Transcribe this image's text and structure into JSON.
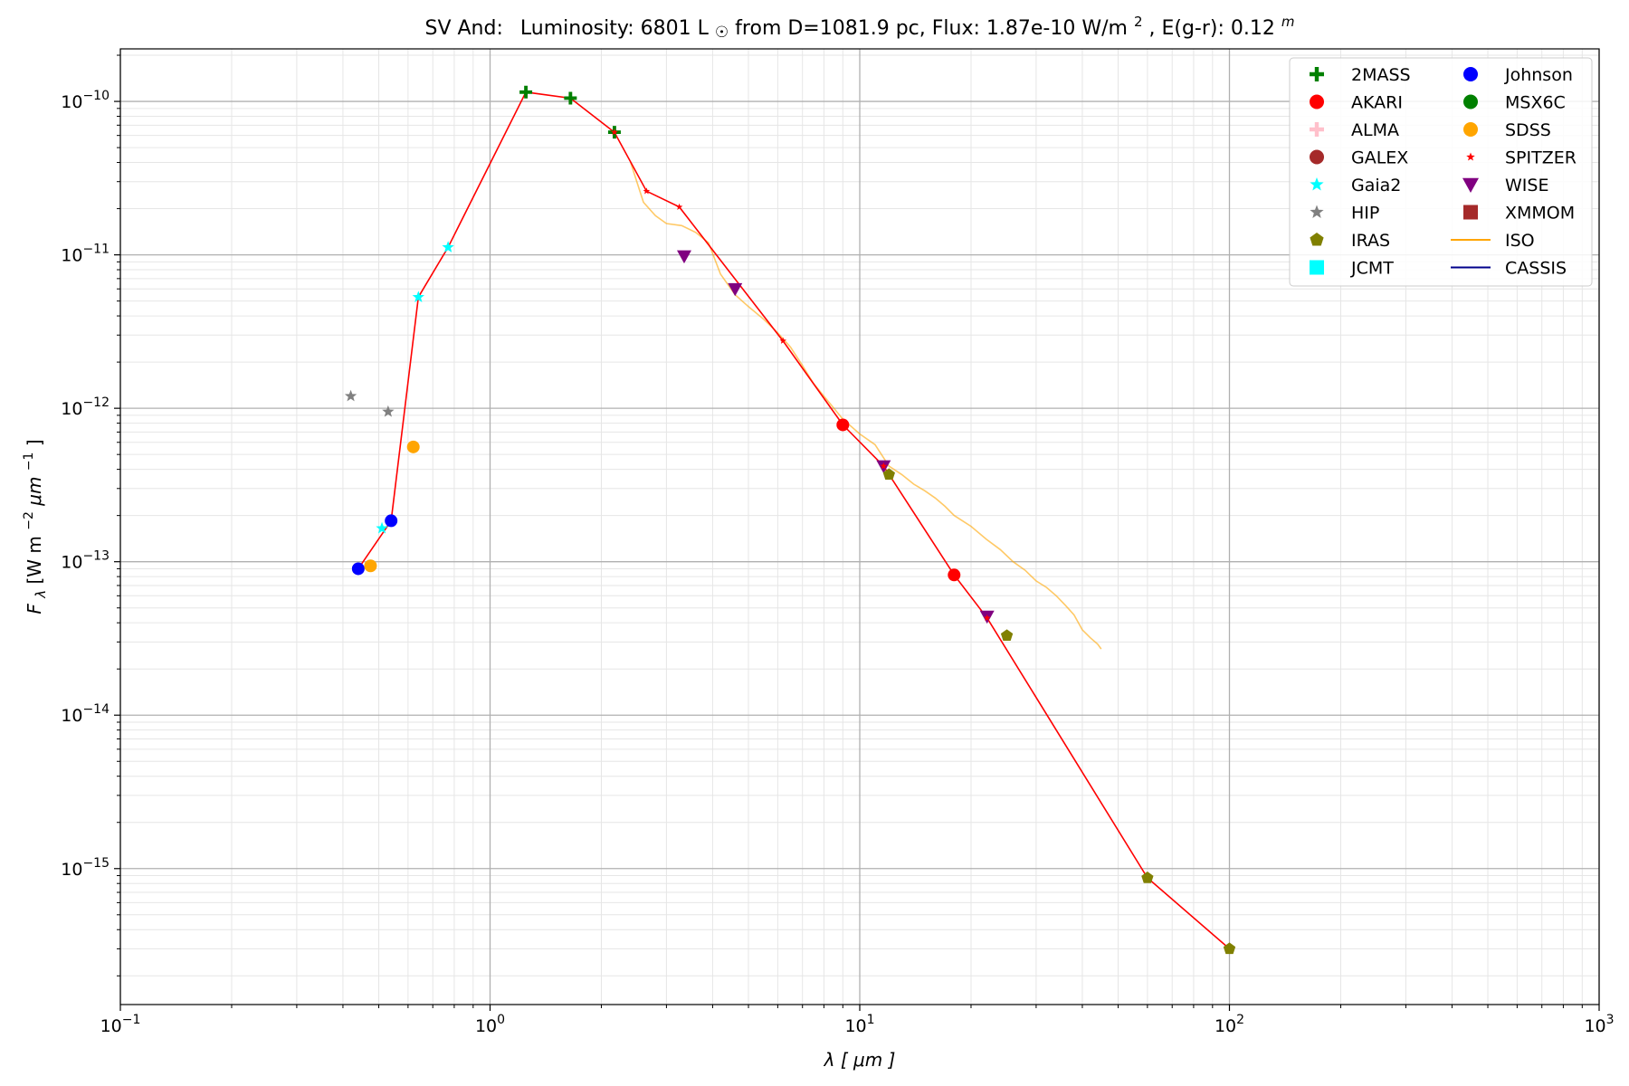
{
  "chart_data": {
    "type": "scatter",
    "title": {
      "star": "SV And:",
      "lum_label": "Luminosity: 6801 L",
      "lum_sym": "☉",
      "dist": " from D=1081.9 pc, Flux: 1.87e-10 W/m",
      "flux_exp": "2",
      "ext": ", E(g-r): 0.12",
      "ext_exp": "m"
    },
    "xlabel": {
      "sym": "λ",
      "rest": " [",
      "unit": "μm",
      "close": "]"
    },
    "ylabel": {
      "sym": "F",
      "sub": "λ",
      "a": " [W m",
      "e1": "−2",
      "b": "μm",
      "e2": "−1",
      "c": "]"
    },
    "x_scale": "log",
    "y_scale": "log",
    "xlim": [
      0.1,
      1000
    ],
    "ylim": [
      1.3e-16,
      2.2e-10
    ],
    "grid": true,
    "legend_position": "top-right",
    "x_ticks": [
      {
        "value": 0.1,
        "base": "10",
        "exp": "−1"
      },
      {
        "value": 1,
        "base": "10",
        "exp": "0"
      },
      {
        "value": 10,
        "base": "10",
        "exp": "1"
      },
      {
        "value": 100,
        "base": "10",
        "exp": "2"
      },
      {
        "value": 1000,
        "base": "10",
        "exp": "3"
      }
    ],
    "y_ticks": [
      {
        "value": 1e-15,
        "base": "10",
        "exp": "−15"
      },
      {
        "value": 1e-14,
        "base": "10",
        "exp": "−14"
      },
      {
        "value": 1e-13,
        "base": "10",
        "exp": "−13"
      },
      {
        "value": 1e-12,
        "base": "10",
        "exp": "−12"
      },
      {
        "value": 1e-11,
        "base": "10",
        "exp": "−11"
      },
      {
        "value": 1e-10,
        "base": "10",
        "exp": "−10"
      }
    ],
    "model_line": {
      "color": "#ff0000",
      "points": [
        [
          0.44,
          9e-14
        ],
        [
          0.54,
          1.85e-13
        ],
        [
          0.64,
          5.3e-12
        ],
        [
          0.77,
          1.12e-11
        ],
        [
          1.25,
          1.15e-10
        ],
        [
          1.65,
          1.05e-10
        ],
        [
          2.17,
          6.3e-11
        ],
        [
          2.65,
          2.6e-11
        ],
        [
          3.25,
          2.05e-11
        ],
        [
          6.2,
          2.75e-12
        ],
        [
          9.0,
          7.8e-13
        ],
        [
          11.6,
          4.2e-13
        ],
        [
          18.0,
          8.2e-14
        ],
        [
          22.1,
          4.3e-14
        ],
        [
          60.0,
          8.7e-16
        ],
        [
          100.0,
          3e-16
        ]
      ]
    },
    "series": [
      {
        "name": "2MASS",
        "marker": "plus",
        "color": "#008000",
        "points": [
          [
            1.25,
            1.15e-10
          ],
          [
            1.65,
            1.05e-10
          ],
          [
            2.17,
            6.3e-11
          ]
        ]
      },
      {
        "name": "AKARI",
        "marker": "circle",
        "color": "#ff0000",
        "points": [
          [
            9.0,
            7.8e-13
          ],
          [
            18.0,
            8.2e-14
          ]
        ]
      },
      {
        "name": "ALMA",
        "marker": "plus",
        "color": "#ffc0cb",
        "points": []
      },
      {
        "name": "GALEX",
        "marker": "circle",
        "color": "#a52a2a",
        "points": []
      },
      {
        "name": "Gaia2",
        "marker": "star",
        "color": "#00ffff",
        "points": [
          [
            0.51,
            1.65e-13
          ],
          [
            0.64,
            5.3e-12
          ],
          [
            0.77,
            1.12e-11
          ]
        ]
      },
      {
        "name": "HIP",
        "marker": "star",
        "color": "#808080",
        "points": [
          [
            0.42,
            1.2e-12
          ],
          [
            0.53,
            9.5e-13
          ]
        ]
      },
      {
        "name": "IRAS",
        "marker": "pentagon",
        "color": "#808000",
        "points": [
          [
            12.0,
            3.7e-13
          ],
          [
            25.0,
            3.3e-14
          ],
          [
            60.0,
            8.7e-16
          ],
          [
            100.0,
            3e-16
          ]
        ]
      },
      {
        "name": "JCMT",
        "marker": "square",
        "color": "#00ffff",
        "points": []
      },
      {
        "name": "Johnson",
        "marker": "circle",
        "color": "#0000ff",
        "points": [
          [
            0.44,
            9e-14
          ],
          [
            0.54,
            1.85e-13
          ]
        ]
      },
      {
        "name": "MSX6C",
        "marker": "circle",
        "color": "#008000",
        "points": []
      },
      {
        "name": "SDSS",
        "marker": "circle",
        "color": "#ffa500",
        "points": [
          [
            0.475,
            9.4e-14
          ],
          [
            0.62,
            5.6e-13
          ]
        ]
      },
      {
        "name": "SPITZER",
        "marker": "star",
        "color": "#ff0000",
        "points": [
          [
            2.17,
            6.3e-11
          ],
          [
            2.65,
            2.6e-11
          ],
          [
            3.25,
            2.05e-11
          ],
          [
            6.2,
            2.75e-12
          ],
          [
            11.6,
            4.2e-13
          ],
          [
            22.1,
            4.3e-14
          ]
        ]
      },
      {
        "name": "WISE",
        "marker": "triangle-down",
        "color": "#800080",
        "points": [
          [
            3.35,
            9.8e-12
          ],
          [
            4.6,
            6e-12
          ],
          [
            11.6,
            4.2e-13
          ],
          [
            22.1,
            4.4e-14
          ]
        ]
      },
      {
        "name": "XMMOM",
        "marker": "square",
        "color": "#a52a2a",
        "points": []
      },
      {
        "name": "ISO",
        "marker": "line",
        "color": "#ffa500",
        "points": [
          [
            2.4,
            4e-11
          ],
          [
            2.6,
            2.2e-11
          ],
          [
            2.8,
            1.8e-11
          ],
          [
            3.0,
            1.6e-11
          ],
          [
            3.3,
            1.55e-11
          ],
          [
            3.6,
            1.4e-11
          ],
          [
            3.9,
            1.2e-11
          ],
          [
            4.2,
            7.5e-12
          ],
          [
            4.6,
            5.5e-12
          ],
          [
            5.0,
            4.6e-12
          ],
          [
            5.5,
            3.8e-12
          ],
          [
            6.0,
            3.1e-12
          ],
          [
            6.5,
            2.5e-12
          ],
          [
            7.0,
            1.9e-12
          ],
          [
            7.5,
            1.45e-12
          ],
          [
            8.0,
            1.2e-12
          ],
          [
            9.0,
            8.5e-13
          ],
          [
            10.0,
            6.8e-13
          ],
          [
            11.0,
            5.8e-13
          ],
          [
            12.0,
            4.2e-13
          ],
          [
            13.0,
            3.7e-13
          ],
          [
            14.0,
            3.2e-13
          ],
          [
            15.0,
            2.9e-13
          ],
          [
            16.0,
            2.6e-13
          ],
          [
            17.0,
            2.3e-13
          ],
          [
            18.0,
            2e-13
          ],
          [
            20.0,
            1.7e-13
          ],
          [
            22.0,
            1.4e-13
          ],
          [
            24.0,
            1.2e-13
          ],
          [
            26.0,
            1e-13
          ],
          [
            28.0,
            8.8e-14
          ],
          [
            30.0,
            7.5e-14
          ],
          [
            32.0,
            6.8e-14
          ],
          [
            34.0,
            6e-14
          ],
          [
            36.0,
            5.2e-14
          ],
          [
            38.0,
            4.5e-14
          ],
          [
            40.0,
            3.6e-14
          ],
          [
            42.0,
            3.2e-14
          ],
          [
            44.0,
            2.9e-14
          ],
          [
            45.0,
            2.7e-14
          ]
        ]
      },
      {
        "name": "CASSIS",
        "marker": "line",
        "color": "#00008b",
        "points": []
      }
    ],
    "legend_columns": [
      [
        "2MASS",
        "AKARI",
        "ALMA",
        "GALEX",
        "Gaia2",
        "HIP",
        "IRAS",
        "JCMT"
      ],
      [
        "Johnson",
        "MSX6C",
        "SDSS",
        "SPITZER",
        "WISE",
        "XMMOM",
        "ISO",
        "CASSIS"
      ]
    ]
  }
}
